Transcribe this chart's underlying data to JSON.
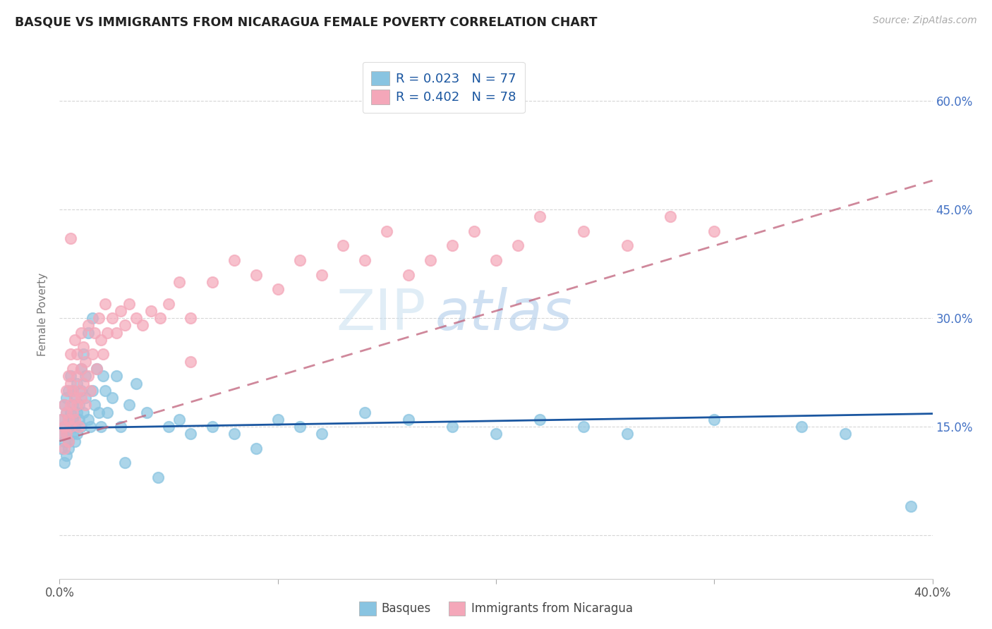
{
  "title": "BASQUE VS IMMIGRANTS FROM NICARAGUA FEMALE POVERTY CORRELATION CHART",
  "source": "Source: ZipAtlas.com",
  "ylabel": "Female Poverty",
  "y_ticks": [
    0.0,
    0.15,
    0.3,
    0.45,
    0.6
  ],
  "y_tick_labels": [
    "",
    "15.0%",
    "30.0%",
    "45.0%",
    "60.0%"
  ],
  "xlim": [
    0.0,
    0.4
  ],
  "ylim": [
    -0.06,
    0.67
  ],
  "color_blue": "#89c4e1",
  "color_pink": "#f4a7b9",
  "trendline_blue": "#1a56a0",
  "trendline_pink": "#c0607a",
  "watermark_zip": "ZIP",
  "watermark_atlas": "atlas",
  "basques_x": [
    0.001,
    0.001,
    0.001,
    0.002,
    0.002,
    0.002,
    0.002,
    0.003,
    0.003,
    0.003,
    0.003,
    0.004,
    0.004,
    0.004,
    0.004,
    0.005,
    0.005,
    0.005,
    0.006,
    0.006,
    0.006,
    0.006,
    0.007,
    0.007,
    0.007,
    0.008,
    0.008,
    0.008,
    0.009,
    0.009,
    0.01,
    0.01,
    0.01,
    0.011,
    0.011,
    0.012,
    0.012,
    0.013,
    0.013,
    0.014,
    0.015,
    0.015,
    0.016,
    0.017,
    0.018,
    0.019,
    0.02,
    0.021,
    0.022,
    0.024,
    0.026,
    0.028,
    0.03,
    0.032,
    0.035,
    0.04,
    0.045,
    0.05,
    0.055,
    0.06,
    0.07,
    0.08,
    0.09,
    0.1,
    0.11,
    0.12,
    0.14,
    0.16,
    0.18,
    0.2,
    0.22,
    0.24,
    0.26,
    0.3,
    0.34,
    0.36,
    0.39
  ],
  "basques_y": [
    0.14,
    0.12,
    0.16,
    0.1,
    0.18,
    0.15,
    0.13,
    0.17,
    0.14,
    0.11,
    0.19,
    0.16,
    0.13,
    0.2,
    0.12,
    0.15,
    0.17,
    0.22,
    0.18,
    0.14,
    0.16,
    0.2,
    0.15,
    0.19,
    0.13,
    0.17,
    0.21,
    0.14,
    0.16,
    0.18,
    0.2,
    0.15,
    0.23,
    0.17,
    0.25,
    0.19,
    0.22,
    0.16,
    0.28,
    0.15,
    0.2,
    0.3,
    0.18,
    0.23,
    0.17,
    0.15,
    0.22,
    0.2,
    0.17,
    0.19,
    0.22,
    0.15,
    0.1,
    0.18,
    0.21,
    0.17,
    0.08,
    0.15,
    0.16,
    0.14,
    0.15,
    0.14,
    0.12,
    0.16,
    0.15,
    0.14,
    0.17,
    0.16,
    0.15,
    0.14,
    0.16,
    0.15,
    0.14,
    0.16,
    0.15,
    0.14,
    0.04
  ],
  "nicaragua_x": [
    0.001,
    0.001,
    0.002,
    0.002,
    0.002,
    0.003,
    0.003,
    0.003,
    0.004,
    0.004,
    0.004,
    0.005,
    0.005,
    0.005,
    0.005,
    0.006,
    0.006,
    0.006,
    0.007,
    0.007,
    0.007,
    0.008,
    0.008,
    0.008,
    0.009,
    0.009,
    0.01,
    0.01,
    0.01,
    0.011,
    0.011,
    0.012,
    0.012,
    0.013,
    0.013,
    0.014,
    0.015,
    0.016,
    0.017,
    0.018,
    0.019,
    0.02,
    0.021,
    0.022,
    0.024,
    0.026,
    0.028,
    0.03,
    0.032,
    0.035,
    0.038,
    0.042,
    0.046,
    0.05,
    0.055,
    0.06,
    0.07,
    0.08,
    0.09,
    0.1,
    0.11,
    0.12,
    0.13,
    0.14,
    0.15,
    0.16,
    0.17,
    0.18,
    0.19,
    0.2,
    0.21,
    0.22,
    0.24,
    0.26,
    0.28,
    0.3,
    0.005,
    0.06
  ],
  "nicaragua_y": [
    0.14,
    0.16,
    0.15,
    0.18,
    0.12,
    0.17,
    0.2,
    0.14,
    0.16,
    0.22,
    0.13,
    0.18,
    0.21,
    0.15,
    0.25,
    0.17,
    0.2,
    0.23,
    0.19,
    0.16,
    0.27,
    0.22,
    0.18,
    0.25,
    0.2,
    0.15,
    0.23,
    0.19,
    0.28,
    0.21,
    0.26,
    0.18,
    0.24,
    0.22,
    0.29,
    0.2,
    0.25,
    0.28,
    0.23,
    0.3,
    0.27,
    0.25,
    0.32,
    0.28,
    0.3,
    0.28,
    0.31,
    0.29,
    0.32,
    0.3,
    0.29,
    0.31,
    0.3,
    0.32,
    0.35,
    0.3,
    0.35,
    0.38,
    0.36,
    0.34,
    0.38,
    0.36,
    0.4,
    0.38,
    0.42,
    0.36,
    0.38,
    0.4,
    0.42,
    0.38,
    0.4,
    0.44,
    0.42,
    0.4,
    0.44,
    0.42,
    0.41,
    0.24
  ]
}
